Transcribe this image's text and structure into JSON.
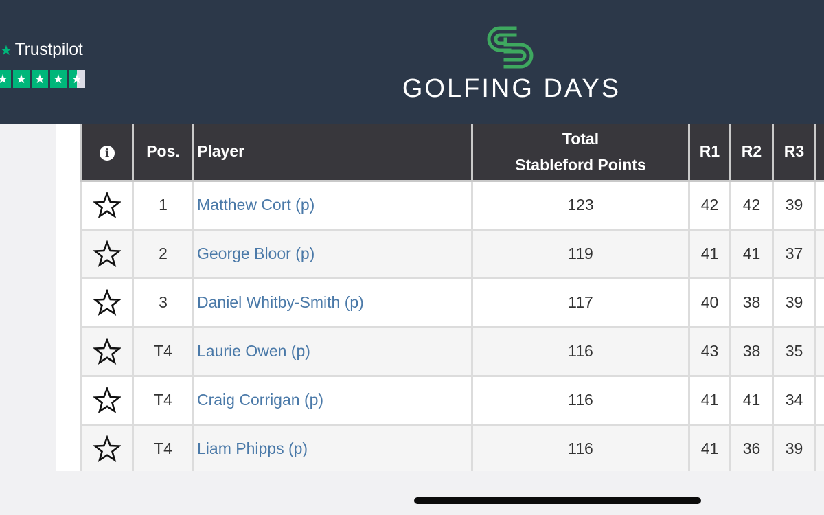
{
  "header": {
    "trustpilot_label": "Trustpilot",
    "trustpilot_rating": 4.5,
    "brand_name": "GOLFING DAYS",
    "brand_color": "#3ea85f",
    "background_color": "#2c3849"
  },
  "table": {
    "headers": {
      "info": "i",
      "pos": "Pos.",
      "player": "Player",
      "total_line1": "Total",
      "total_line2": "Stableford Points",
      "r1": "R1",
      "r2": "R2",
      "r3": "R3"
    },
    "rows": [
      {
        "pos": "1",
        "player": "Matthew Cort (p)",
        "total": "123",
        "r1": "42",
        "r2": "42",
        "r3": "39"
      },
      {
        "pos": "2",
        "player": "George Bloor (p)",
        "total": "119",
        "r1": "41",
        "r2": "41",
        "r3": "37"
      },
      {
        "pos": "3",
        "player": "Daniel Whitby-Smith (p)",
        "total": "117",
        "r1": "40",
        "r2": "38",
        "r3": "39"
      },
      {
        "pos": "T4",
        "player": "Laurie Owen (p)",
        "total": "116",
        "r1": "43",
        "r2": "38",
        "r3": "35"
      },
      {
        "pos": "T4",
        "player": "Craig Corrigan (p)",
        "total": "116",
        "r1": "41",
        "r2": "41",
        "r3": "34"
      },
      {
        "pos": "T4",
        "player": "Liam Phipps (p)",
        "total": "116",
        "r1": "41",
        "r2": "36",
        "r3": "39"
      }
    ]
  }
}
